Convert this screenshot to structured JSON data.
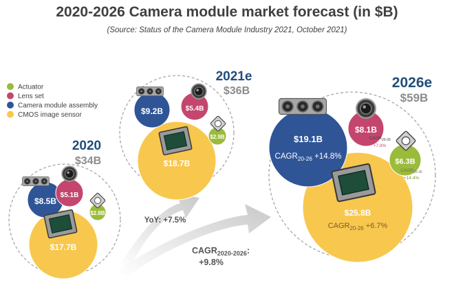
{
  "title": "2020-2026 Camera module market forecast (in $B)",
  "subtitle": "(Source: Status of the Camera Module Industry 2021, October 2021)",
  "colors": {
    "actuator": "#9bbb3b",
    "lens_set": "#c4466e",
    "camera_module_assembly": "#2f5597",
    "cmos_image_sensor": "#f8c74e",
    "year_blue": "#1f4e79",
    "total_grey": "#8c8c8c",
    "arrow_grey": "#c9c9c9"
  },
  "icons": {
    "camera_module_assembly": "triple-camera-module-icon",
    "lens_set": "lens-icon",
    "actuator": "actuator-icon",
    "cmos_image_sensor": "image-sensor-chip-icon"
  },
  "chart_data": {
    "type": "bubble",
    "title": "2020-2026 Camera module market forecast (in $B)",
    "subtitle": "(Source: Status of the Camera Module Industry 2021, October 2021)",
    "unit": "$B",
    "legend": {
      "placement": "top-left",
      "entries": [
        "Actuator",
        "Lens set",
        "Camera module assembly",
        "CMOS image sensor"
      ]
    },
    "groups": [
      {
        "year": "2020",
        "total": "$34B",
        "total_value": 34,
        "segments": [
          {
            "name": "Camera module assembly",
            "label": "$8.5B",
            "value": 8.5
          },
          {
            "name": "Lens set",
            "label": "$5.1B",
            "value": 5.1
          },
          {
            "name": "Actuator",
            "label": "$2.8B",
            "value": 2.8
          },
          {
            "name": "CMOS image sensor",
            "label": "$17.7B",
            "value": 17.7
          }
        ]
      },
      {
        "year": "2021e",
        "total": "$36B",
        "total_value": 36,
        "segments": [
          {
            "name": "Camera module assembly",
            "label": "$9.2B",
            "value": 9.2
          },
          {
            "name": "Lens set",
            "label": "$5.4B",
            "value": 5.4
          },
          {
            "name": "Actuator",
            "label": "$2.9B",
            "value": 2.9
          },
          {
            "name": "CMOS image sensor",
            "label": "$18.7B",
            "value": 18.7
          }
        ]
      },
      {
        "year": "2026e",
        "total": "$59B",
        "total_value": 59,
        "segments": [
          {
            "name": "Camera module assembly",
            "label": "$19.1B",
            "value": 19.1,
            "cagr": "+14.8%"
          },
          {
            "name": "Lens set",
            "label": "$8.1B",
            "value": 8.1,
            "cagr": "+7.9%"
          },
          {
            "name": "Actuator",
            "label": "$6.3B",
            "value": 6.3,
            "cagr": "+14.4%"
          },
          {
            "name": "CMOS image sensor",
            "label": "$25.8B",
            "value": 25.8,
            "cagr": "+6.7%"
          }
        ]
      }
    ],
    "growth_labels": {
      "yoy": "YoY: +7.5%",
      "cagr_prefix": "CAGR",
      "cagr_period": "2020-2026",
      "cagr_suffix": ":",
      "cagr_value": "+9.8%",
      "segment_cagr_prefix": "CAGR",
      "segment_cagr_period": "20-26"
    }
  }
}
